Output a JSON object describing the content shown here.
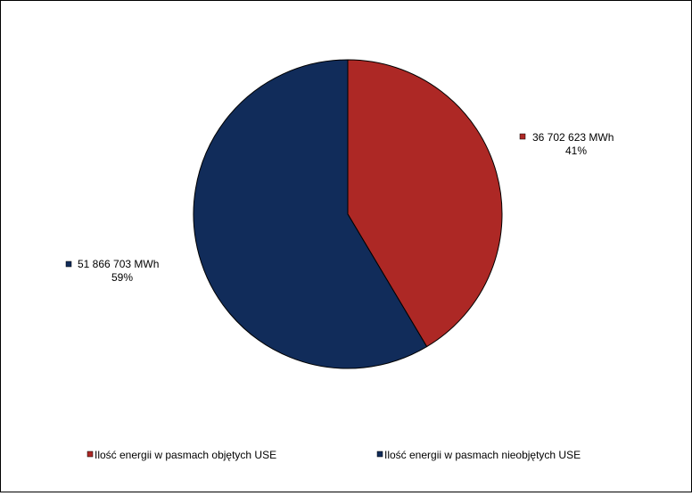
{
  "chart_data": {
    "type": "pie",
    "title": "",
    "series": [
      {
        "name": "Ilość energii w pasmach objętych USE",
        "value": 36702623,
        "value_label": "36 702 623 MWh",
        "percent_label": "41%",
        "color": "#AD2825"
      },
      {
        "name": "Ilość energii w pasmach nieobjętych USE",
        "value": 51866703,
        "value_label": "51 866 703 MWh",
        "percent_label": "59%",
        "color": "#112C5A"
      }
    ],
    "start_angle": "12 o'clock",
    "direction": "clockwise",
    "legend_position": "bottom"
  }
}
